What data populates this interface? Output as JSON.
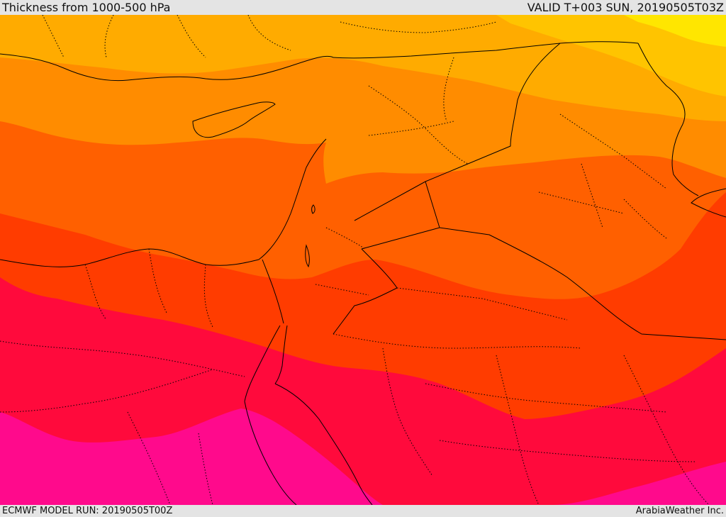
{
  "header": {
    "title": "Thickness from 1000-500 hPa",
    "valid": "VALID T+003 SUN, 20190505T03Z"
  },
  "footer": {
    "model_run": "ECMWF MODEL RUN: 20190505T00Z",
    "credit": "ArabiaWeather Inc."
  },
  "map": {
    "colors": {
      "band_yellow": "#ffe600",
      "band_light_orange": "#ffc400",
      "band_amber": "#ffab00",
      "band_orange": "#ff8c00",
      "band_dark_orange": "#ff6000",
      "band_red_orange": "#ff3c00",
      "band_crimson": "#ff0a3c",
      "band_magenta": "#ff0a8c",
      "band_purple": "#e600e6",
      "coastline": "#000000",
      "border": "#000000"
    }
  }
}
